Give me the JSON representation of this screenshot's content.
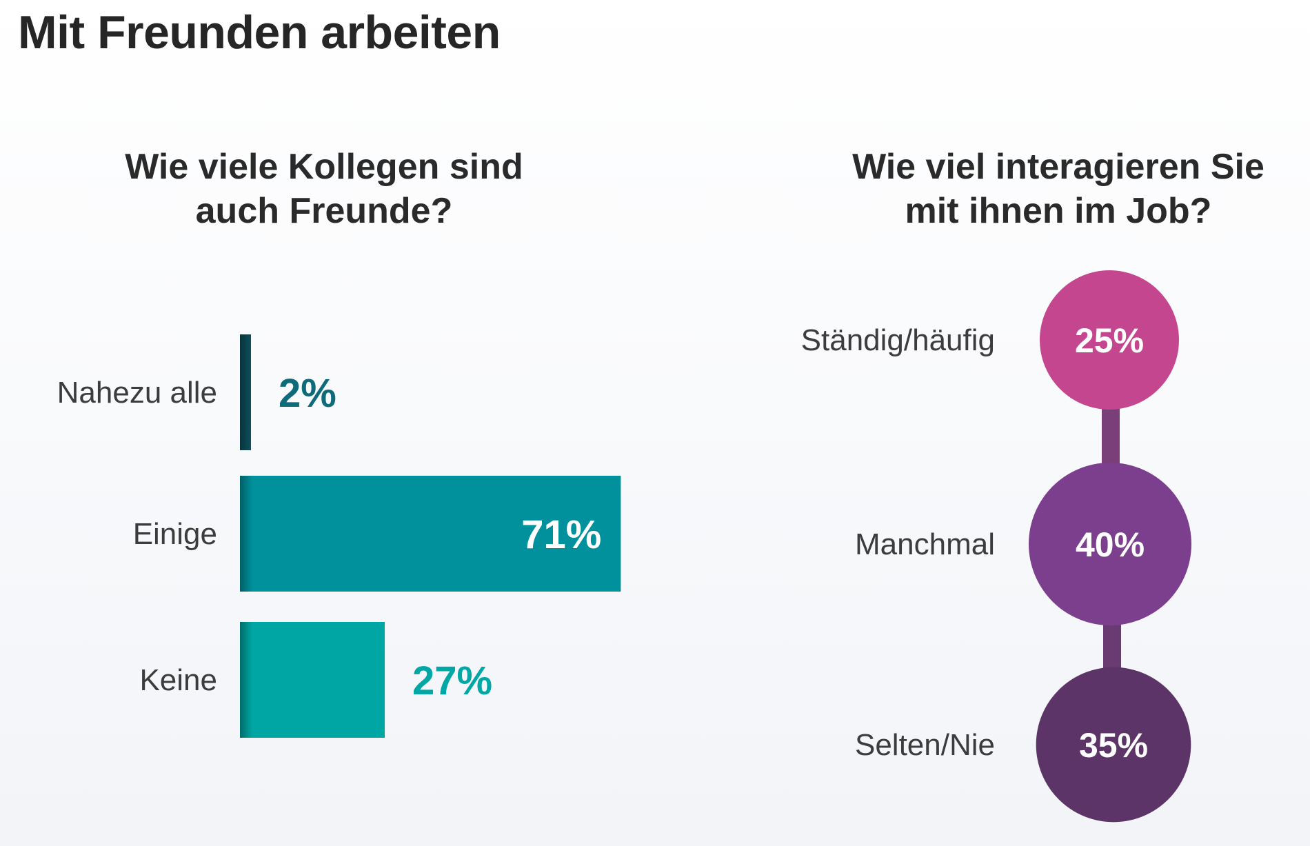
{
  "header": {
    "title": "Mit Freunden arbeiten"
  },
  "chart_data": [
    {
      "type": "bar",
      "orientation": "horizontal",
      "title": "Wie viele Kollegen sind\nauch Freunde?",
      "categories": [
        "Nahezu alle",
        "Einige",
        "Keine"
      ],
      "values": [
        2,
        71,
        27
      ],
      "value_labels": [
        "2%",
        "71%",
        "27%"
      ],
      "unit": "%",
      "colors": [
        "#0d4f5c",
        "#00919c",
        "#00a6a3"
      ],
      "xlim": [
        0,
        100
      ]
    },
    {
      "type": "bubble",
      "title": "Wie viel interagieren Sie\nmit ihnen im Job?",
      "categories": [
        "Ständig/häufig",
        "Manchmal",
        "Selten/Nie"
      ],
      "values": [
        25,
        40,
        35
      ],
      "value_labels": [
        "25%",
        "40%",
        "35%"
      ],
      "unit": "%",
      "colors": [
        "#c4468f",
        "#7b3f8e",
        "#5c3468"
      ],
      "connector_color": "#7a3e78"
    }
  ]
}
